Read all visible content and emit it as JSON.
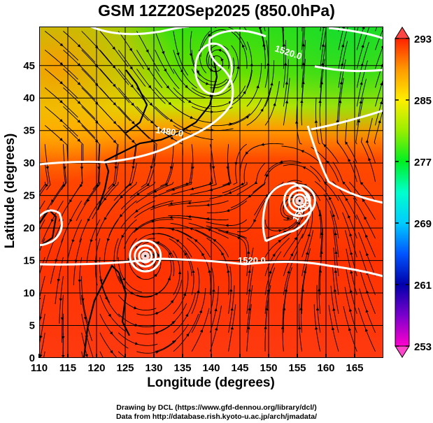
{
  "title": "GSM 12Z20Sep2025 (850.0hPa)",
  "x_axis": {
    "label": "Longitude (degrees)",
    "range": [
      110,
      170
    ],
    "ticks": [
      "110",
      "115",
      "120",
      "125",
      "130",
      "135",
      "140",
      "145",
      "150",
      "155",
      "160",
      "165"
    ]
  },
  "y_axis": {
    "label": "Latitude  (degrees)",
    "range": [
      0,
      51
    ],
    "ticks": [
      "0",
      "5",
      "10",
      "15",
      "20",
      "25",
      "30",
      "35",
      "40",
      "45"
    ]
  },
  "colorbar": {
    "variable": "temperature (K)",
    "range": [
      253,
      293
    ],
    "ticks": [
      "293",
      "285",
      "277",
      "269",
      "261",
      "253"
    ],
    "colors": [
      "#ff00cc",
      "#7a00cc",
      "#0000aa",
      "#0055ff",
      "#00ccff",
      "#00ffcc",
      "#00ee22",
      "#99ee00",
      "#ffee00",
      "#ff9900",
      "#ff2200"
    ]
  },
  "contour_labels": [
    "1520.0",
    "1480.0",
    "1520.0",
    "1520.0"
  ],
  "cyclones": [
    {
      "lon": 128.5,
      "lat": 15.7
    },
    {
      "lon": 155.4,
      "lat": 24.2
    },
    {
      "lon": 140.4,
      "lat": 44.5
    }
  ],
  "credits": {
    "line1": "Drawing by DCL (https://www.gfd-dennou.org/library/dcl/)",
    "line2": "Data from http://database.rish.kyoto-u.ac.jp/arch/jmadata/"
  }
}
